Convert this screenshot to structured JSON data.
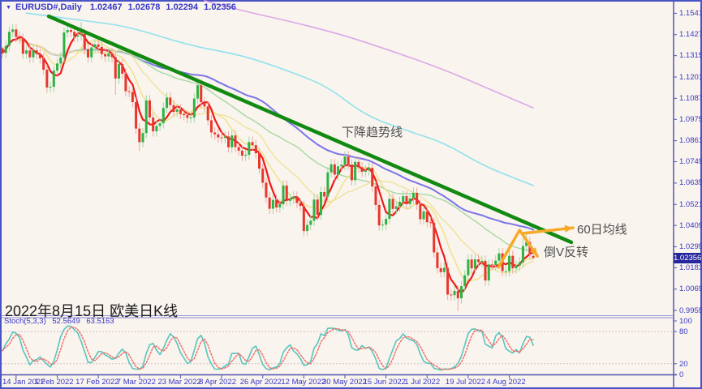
{
  "window": {
    "background": "#F9F4ED",
    "border_color": "#4A53C4"
  },
  "header": {
    "marker": "▼",
    "title": "EURUSD#,Daily",
    "open": "1.02467",
    "high": "1.02678",
    "low": "1.02294",
    "close": "1.02356",
    "text_color": "#3838C8"
  },
  "annotations": {
    "trendline_label": "下降趋势线",
    "ma60_label": "60日均线",
    "reversal_label": "倒V反转",
    "caption": "2022年8月15日 欧美日K线",
    "label_color": "#4F4F4F",
    "arrow_color": "#F7A928",
    "trendline_color": "#128A12"
  },
  "price_axis": {
    "labels": [
      "1.15410",
      "1.14270",
      "1.13150",
      "1.12010",
      "1.10870",
      "1.09750",
      "1.08610",
      "1.07490",
      "1.06350",
      "1.05210",
      "1.04090",
      "1.02950",
      "1.01830",
      "1.00690",
      "0.99550"
    ],
    "badge": "1.02356",
    "badge_bg": "#26269C",
    "text_color": "#3A3AC8"
  },
  "time_axis": {
    "labels": [
      "14 Jan 2022",
      "1 Feb 2022",
      "17 Feb 2022",
      "7 Mar 2022",
      "23 Mar 2022",
      "8 Apr 2022",
      "26 Apr 2022",
      "12 May 2022",
      "30 May 2022",
      "15 Jun 2022",
      "1 Jul 2022",
      "19 Jul 2022",
      "4 Aug 2022"
    ]
  },
  "stoch": {
    "label": "Stoch(5,3,3)",
    "value_k": "52.5649",
    "value_d": "63.5163",
    "k_color": "#56C6BE",
    "d_color": "#F26B66",
    "levels": [
      {
        "v": 100,
        "label": "100"
      },
      {
        "v": 80,
        "label": "80"
      },
      {
        "v": 20,
        "label": "20"
      },
      {
        "v": 0,
        "label": "0"
      }
    ]
  },
  "chart_data": {
    "type": "candlestick+oscillator",
    "symbol": "EURUSD#",
    "timeframe": "Daily",
    "ylim": [
      0.9934,
      1.156
    ],
    "y_ticks": [
      1.1541,
      1.1427,
      1.1315,
      1.1201,
      1.1087,
      1.0975,
      1.0861,
      1.0749,
      1.0635,
      1.0521,
      1.0409,
      1.0295,
      1.0183,
      1.0069,
      0.9955
    ],
    "x_tick_indices": [
      4,
      16,
      28,
      40,
      52,
      64,
      76,
      88,
      100,
      112,
      124,
      136,
      148
    ],
    "current_price": 1.02356,
    "candles": [
      [
        1.1355,
        1.1364,
        1.1301,
        1.1329
      ],
      [
        1.1329,
        1.1395,
        1.1301,
        1.1367
      ],
      [
        1.1367,
        1.147,
        1.1339,
        1.1442
      ],
      [
        1.1442,
        1.1483,
        1.1414,
        1.1455
      ],
      [
        1.1455,
        1.1483,
        1.1387,
        1.1415
      ],
      [
        1.1415,
        1.1443,
        1.1378,
        1.1406
      ],
      [
        1.1406,
        1.1434,
        1.1297,
        1.1325
      ],
      [
        1.1325,
        1.1371,
        1.1297,
        1.1343
      ],
      [
        1.1343,
        1.1371,
        1.1278,
        1.1306
      ],
      [
        1.1306,
        1.1371,
        1.1278,
        1.1343
      ],
      [
        1.1343,
        1.1371,
        1.1297,
        1.1325
      ],
      [
        1.1325,
        1.1353,
        1.1273,
        1.1301
      ],
      [
        1.1301,
        1.1329,
        1.1212,
        1.124
      ],
      [
        1.124,
        1.1268,
        1.1117,
        1.1145
      ],
      [
        1.1145,
        1.1177,
        1.1117,
        1.1149
      ],
      [
        1.1149,
        1.1263,
        1.1121,
        1.1235
      ],
      [
        1.1235,
        1.1301,
        1.1207,
        1.1273
      ],
      [
        1.1273,
        1.1333,
        1.1245,
        1.1305
      ],
      [
        1.1305,
        1.1467,
        1.1277,
        1.1439
      ],
      [
        1.1439,
        1.148,
        1.1411,
        1.1452
      ],
      [
        1.1452,
        1.148,
        1.1414,
        1.1442
      ],
      [
        1.1442,
        1.147,
        1.1389,
        1.1417
      ],
      [
        1.1417,
        1.1452,
        1.1389,
        1.1424
      ],
      [
        1.1424,
        1.1495,
        1.1396,
        1.143
      ],
      [
        1.143,
        1.1458,
        1.1321,
        1.1349
      ],
      [
        1.1349,
        1.1377,
        1.1278,
        1.1306
      ],
      [
        1.1306,
        1.1387,
        1.1278,
        1.1359
      ],
      [
        1.1359,
        1.1403,
        1.1331,
        1.1375
      ],
      [
        1.1375,
        1.1403,
        1.1334,
        1.1362
      ],
      [
        1.1362,
        1.139,
        1.1295,
        1.1323
      ],
      [
        1.1323,
        1.1351,
        1.1283,
        1.1311
      ],
      [
        1.1311,
        1.1355,
        1.1283,
        1.1327
      ],
      [
        1.1327,
        1.1355,
        1.1279,
        1.1307
      ],
      [
        1.1307,
        1.1335,
        1.1106,
        1.1193
      ],
      [
        1.1193,
        1.1298,
        1.1165,
        1.127
      ],
      [
        1.127,
        1.1298,
        1.119,
        1.1218
      ],
      [
        1.1218,
        1.1246,
        1.1097,
        1.1125
      ],
      [
        1.1125,
        1.1153,
        1.1093,
        1.1121
      ],
      [
        1.1121,
        1.1149,
        1.1039,
        1.1067
      ],
      [
        1.1067,
        1.1095,
        1.0898,
        1.0926
      ],
      [
        1.0926,
        1.0954,
        1.0806,
        1.0853
      ],
      [
        1.0853,
        1.093,
        1.0825,
        1.0902
      ],
      [
        1.0902,
        1.1104,
        1.0874,
        1.1076
      ],
      [
        1.1076,
        1.1104,
        1.0957,
        1.0985
      ],
      [
        1.0985,
        1.1013,
        1.0883,
        1.0911
      ],
      [
        1.0911,
        1.0968,
        1.0883,
        1.094
      ],
      [
        1.094,
        1.0982,
        1.0912,
        1.0954
      ],
      [
        1.0954,
        1.1064,
        1.0926,
        1.1036
      ],
      [
        1.1036,
        1.1119,
        1.1008,
        1.1091
      ],
      [
        1.1091,
        1.1119,
        1.1023,
        1.1051
      ],
      [
        1.1051,
        1.1079,
        1.0987,
        1.1015
      ],
      [
        1.1015,
        1.1056,
        1.0987,
        1.1028
      ],
      [
        1.1028,
        1.1056,
        1.0976,
        1.1004
      ],
      [
        1.1004,
        1.1032,
        1.0969,
        1.0997
      ],
      [
        1.0997,
        1.1025,
        1.0955,
        1.0983
      ],
      [
        1.0983,
        1.1013,
        1.0955,
        1.0985
      ],
      [
        1.0985,
        1.1114,
        1.0957,
        1.1086
      ],
      [
        1.1086,
        1.1185,
        1.1058,
        1.1157
      ],
      [
        1.1157,
        1.1185,
        1.1039,
        1.1067
      ],
      [
        1.1067,
        1.1095,
        1.1016,
        1.1044
      ],
      [
        1.1044,
        1.1072,
        1.0942,
        1.097
      ],
      [
        1.097,
        1.0998,
        1.0877,
        1.0905
      ],
      [
        1.0905,
        1.0933,
        1.0867,
        1.0895
      ],
      [
        1.0895,
        1.0923,
        1.0851,
        1.0879
      ],
      [
        1.0879,
        1.0907,
        1.0848,
        1.0876
      ],
      [
        1.0876,
        1.0912,
        1.0848,
        1.0884
      ],
      [
        1.0884,
        1.0912,
        1.0798,
        1.0826
      ],
      [
        1.0826,
        1.0917,
        1.0798,
        1.0889
      ],
      [
        1.0889,
        1.0917,
        1.0799,
        1.0827
      ],
      [
        1.0827,
        1.0855,
        1.078,
        1.0808
      ],
      [
        1.0808,
        1.0836,
        1.0753,
        1.0781
      ],
      [
        1.0781,
        1.0814,
        1.0753,
        1.0786
      ],
      [
        1.0786,
        1.0882,
        1.0758,
        1.0854
      ],
      [
        1.0854,
        1.0882,
        1.0809,
        1.0837
      ],
      [
        1.0837,
        1.0865,
        1.0766,
        1.0794
      ],
      [
        1.0794,
        1.0822,
        1.0684,
        1.0712
      ],
      [
        1.0712,
        1.074,
        1.0609,
        1.0637
      ],
      [
        1.0637,
        1.0665,
        1.053,
        1.0558
      ],
      [
        1.0558,
        1.0586,
        1.047,
        1.0498
      ],
      [
        1.0498,
        1.0573,
        1.047,
        1.0545
      ],
      [
        1.0545,
        1.0573,
        1.0477,
        1.0505
      ],
      [
        1.0505,
        1.055,
        1.0477,
        1.0522
      ],
      [
        1.0522,
        1.065,
        1.0494,
        1.0622
      ],
      [
        1.0622,
        1.065,
        1.0512,
        1.054
      ],
      [
        1.054,
        1.0579,
        1.0512,
        1.0551
      ],
      [
        1.0551,
        1.0591,
        1.0523,
        1.0563
      ],
      [
        1.0563,
        1.0591,
        1.0501,
        1.0529
      ],
      [
        1.0529,
        1.0557,
        1.0485,
        1.0513
      ],
      [
        1.0513,
        1.0541,
        1.0351,
        1.0379
      ],
      [
        1.0379,
        1.044,
        1.0351,
        1.0412
      ],
      [
        1.0412,
        1.0462,
        1.0384,
        1.0434
      ],
      [
        1.0434,
        1.0575,
        1.0406,
        1.0547
      ],
      [
        1.0547,
        1.0575,
        1.0437,
        1.0465
      ],
      [
        1.0465,
        1.0615,
        1.0437,
        1.0587
      ],
      [
        1.0587,
        1.0615,
        1.0535,
        1.0563
      ],
      [
        1.0563,
        1.072,
        1.0535,
        1.0692
      ],
      [
        1.0692,
        1.0763,
        1.0664,
        1.0735
      ],
      [
        1.0735,
        1.0763,
        1.0652,
        1.068
      ],
      [
        1.068,
        1.0752,
        1.0652,
        1.0724
      ],
      [
        1.0724,
        1.0761,
        1.0696,
        1.0733
      ],
      [
        1.0733,
        1.0805,
        1.0705,
        1.0777
      ],
      [
        1.0777,
        1.0805,
        1.0706,
        1.0734
      ],
      [
        1.0734,
        1.0762,
        1.0622,
        1.065
      ],
      [
        1.065,
        1.0776,
        1.0622,
        1.0748
      ],
      [
        1.0748,
        1.0776,
        1.0691,
        1.0719
      ],
      [
        1.0719,
        1.0747,
        1.0667,
        1.0695
      ],
      [
        1.0695,
        1.0731,
        1.0667,
        1.0703
      ],
      [
        1.0703,
        1.0744,
        1.0675,
        1.0716
      ],
      [
        1.0716,
        1.0744,
        1.0589,
        1.0617
      ],
      [
        1.0617,
        1.0645,
        1.049,
        1.0518
      ],
      [
        1.0518,
        1.0546,
        1.0381,
        1.0409
      ],
      [
        1.0409,
        1.0441,
        1.0381,
        1.0413
      ],
      [
        1.0413,
        1.0472,
        1.0385,
        1.0444
      ],
      [
        1.0444,
        1.0579,
        1.0416,
        1.0551
      ],
      [
        1.0551,
        1.0579,
        1.0469,
        1.0497
      ],
      [
        1.0497,
        1.0539,
        1.0469,
        1.0511
      ],
      [
        1.0511,
        1.0563,
        1.0483,
        1.0535
      ],
      [
        1.0535,
        1.0594,
        1.0507,
        1.0566
      ],
      [
        1.0566,
        1.0594,
        1.0495,
        1.0523
      ],
      [
        1.0523,
        1.0581,
        1.0495,
        1.0553
      ],
      [
        1.0553,
        1.0611,
        1.0525,
        1.0583
      ],
      [
        1.0583,
        1.0611,
        1.0492,
        1.052
      ],
      [
        1.052,
        1.0548,
        1.0414,
        1.0442
      ],
      [
        1.0442,
        1.0512,
        1.0414,
        1.0484
      ],
      [
        1.0484,
        1.0512,
        1.0398,
        1.0426
      ],
      [
        1.0426,
        1.0454,
        1.0395,
        1.0423
      ],
      [
        1.0423,
        1.0451,
        1.0237,
        1.0265
      ],
      [
        1.0265,
        1.0293,
        1.0153,
        1.0181
      ],
      [
        1.0181,
        1.0209,
        1.0132,
        1.016
      ],
      [
        1.016,
        1.0211,
        1.0132,
        1.0183
      ],
      [
        1.0183,
        1.0211,
        1.0012,
        1.004
      ],
      [
        1.004,
        1.0068,
        1.0009,
        1.0037
      ],
      [
        1.0037,
        1.0088,
        1.0009,
        1.006
      ],
      [
        1.006,
        1.0088,
        0.9952,
        1.002
      ],
      [
        1.002,
        1.0113,
        0.9992,
        1.0085
      ],
      [
        1.0085,
        1.0171,
        1.0057,
        1.0143
      ],
      [
        1.0143,
        1.0255,
        1.0115,
        1.0227
      ],
      [
        1.0227,
        1.0255,
        1.0152,
        1.018
      ],
      [
        1.018,
        1.0256,
        1.0152,
        1.0228
      ],
      [
        1.0228,
        1.0256,
        1.0185,
        1.0213
      ],
      [
        1.0213,
        1.0248,
        1.0185,
        1.022
      ],
      [
        1.022,
        1.0248,
        1.0087,
        1.0115
      ],
      [
        1.0115,
        1.0229,
        1.0087,
        1.0201
      ],
      [
        1.0201,
        1.0229,
        1.0169,
        1.0197
      ],
      [
        1.0197,
        1.0249,
        1.0169,
        1.0221
      ],
      [
        1.0221,
        1.0288,
        1.0193,
        1.026
      ],
      [
        1.026,
        1.0288,
        1.0137,
        1.0165
      ],
      [
        1.0165,
        1.0193,
        1.0137,
        1.0165
      ],
      [
        1.0165,
        1.0275,
        1.0137,
        1.0247
      ],
      [
        1.0247,
        1.0275,
        1.0152,
        1.018
      ],
      [
        1.018,
        1.0222,
        1.0152,
        1.0194
      ],
      [
        1.0194,
        1.024,
        1.0166,
        1.0212
      ],
      [
        1.0212,
        1.034,
        1.0184,
        1.0299
      ],
      [
        1.0299,
        1.0365,
        1.0271,
        1.032
      ],
      [
        1.032,
        1.0348,
        1.0229,
        1.0257
      ],
      [
        1.02467,
        1.02678,
        1.02294,
        1.02356
      ]
    ],
    "sma_overlays": [
      {
        "name": "MA5",
        "period": 5,
        "color": "#F21818",
        "width": 2.2
      },
      {
        "name": "MA10",
        "period": 10,
        "color": "#F2E084",
        "width": 1.4
      },
      {
        "name": "MA20",
        "period": 20,
        "color": "#EDE39B",
        "width": 1.4
      },
      {
        "name": "MA40",
        "period": 40,
        "color": "#A5D9A5",
        "width": 1.4
      },
      {
        "name": "MA60",
        "period": 60,
        "color": "#7C74E8",
        "width": 2
      }
    ],
    "ma_polylines": [
      {
        "name": "MA120",
        "color": "#8FE1EE",
        "width": 1.6,
        "points": [
          [
            7,
            1.1542
          ],
          [
            24,
            1.1502
          ],
          [
            37,
            1.147
          ],
          [
            55,
            1.1367
          ],
          [
            70,
            1.1318
          ],
          [
            84,
            1.123
          ],
          [
            95,
            1.115
          ],
          [
            106,
            1.0995
          ],
          [
            118,
            1.0915
          ],
          [
            129,
            1.085
          ],
          [
            140,
            1.0732
          ],
          [
            148,
            1.0672
          ],
          [
            155,
            1.0622
          ]
        ]
      },
      {
        "name": "MA250",
        "color": "#DCA8E8",
        "width": 1.6,
        "points": [
          [
            59,
            1.1608
          ],
          [
            70,
            1.1554
          ],
          [
            84,
            1.1498
          ],
          [
            99,
            1.1428
          ],
          [
            114,
            1.1338
          ],
          [
            129,
            1.124
          ],
          [
            142,
            1.1138
          ],
          [
            155,
            1.1036
          ]
        ]
      }
    ],
    "trendline": {
      "from": [
        13.5,
        1.1525
      ],
      "to": [
        166.1,
        1.0319
      ]
    },
    "ma60_arrow": {
      "from": [
        151.7,
        1.0366
      ],
      "to": [
        166.6,
        1.0396
      ]
    },
    "vee_arrow": {
      "points": [
        [
          144.8,
          1.0185
        ],
        [
          151.0,
          1.0384
        ],
        [
          156.2,
          1.0245
        ]
      ]
    },
    "stoch_params": {
      "k": 5,
      "slowing": 3,
      "d": 3,
      "levels": [
        20,
        80
      ]
    }
  }
}
